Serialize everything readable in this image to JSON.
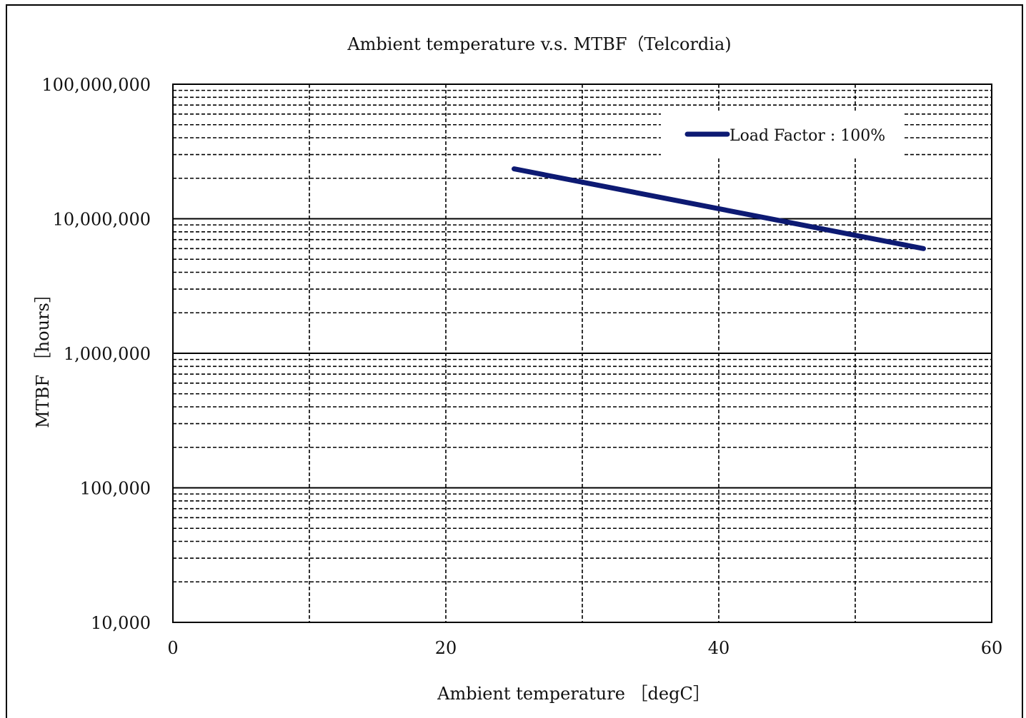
{
  "chart_data": {
    "type": "line",
    "title": "Ambient temperature  v.s.  MTBF（Telcordia)",
    "xlabel": "Ambient temperature ［degC］",
    "ylabel": "MTBF ［hours］",
    "xlim": [
      0,
      60
    ],
    "ylim": [
      10000,
      100000000
    ],
    "y_scale": "log",
    "x_ticks": [
      0,
      20,
      40,
      60
    ],
    "x_tick_labels": [
      "0",
      "20",
      "40",
      "60"
    ],
    "y_ticks": [
      10000,
      100000,
      1000000,
      10000000,
      100000000
    ],
    "y_tick_labels": [
      "10,000",
      "100,000",
      "1,000,000",
      "10,000,000",
      "100,000,000"
    ],
    "x_minor_grid": [
      10,
      30,
      50
    ],
    "grid": true,
    "legend_position": "top-right",
    "series_color": "#0d1a73",
    "series": [
      {
        "name": "Load Factor : 100%",
        "x": [
          25,
          55
        ],
        "y": [
          23500000,
          6000000
        ]
      }
    ]
  }
}
